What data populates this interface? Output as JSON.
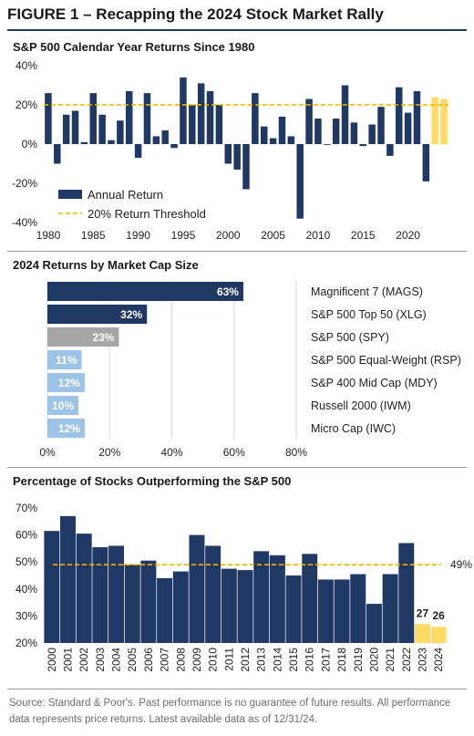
{
  "figure_title": "FIGURE 1 – Recapping the 2024 Stock Market Rally",
  "source_note": "Source: Standard & Poor's. Past performance is no guarantee of future results. All performance data represents price returns. Latest available data as of 12/31/24.",
  "colors": {
    "navy": "#1f3864",
    "gold": "#ffd966",
    "gray": "#a6a6a6",
    "light_blue": "#9dc3e6",
    "threshold": "#f0b400"
  },
  "chart_data": [
    {
      "type": "bar",
      "title": "S&P 500 Calendar Year Returns Since 1980",
      "x": [
        1980,
        1981,
        1982,
        1983,
        1984,
        1985,
        1986,
        1987,
        1988,
        1989,
        1990,
        1991,
        1992,
        1993,
        1994,
        1995,
        1996,
        1997,
        1998,
        1999,
        2000,
        2001,
        2002,
        2003,
        2004,
        2005,
        2006,
        2007,
        2008,
        2009,
        2010,
        2011,
        2012,
        2013,
        2014,
        2015,
        2016,
        2017,
        2018,
        2019,
        2020,
        2021,
        2022,
        2023,
        2024
      ],
      "series": [
        {
          "name": "Annual Return",
          "values": [
            26,
            -10,
            15,
            17,
            1,
            26,
            15,
            2,
            12,
            27,
            -7,
            26,
            4,
            7,
            -2,
            34,
            20,
            31,
            27,
            20,
            -10,
            -13,
            -23,
            26,
            9,
            3,
            14,
            4,
            -38,
            23,
            13,
            0,
            13,
            30,
            11,
            -1,
            10,
            19,
            -6,
            29,
            16,
            27,
            -19,
            24,
            23
          ]
        }
      ],
      "highlight_years": [
        2023,
        2024
      ],
      "reference_line": {
        "name": "20% Return Threshold",
        "value": 20
      },
      "ylim": [
        -40,
        40
      ],
      "yticks": [
        "40%",
        "20%",
        "0%",
        "-20%",
        "-40%"
      ],
      "xticks": [
        "1980",
        "1985",
        "1990",
        "1995",
        "2000",
        "2005",
        "2010",
        "2015",
        "2020"
      ],
      "legend": [
        "Annual Return",
        "20% Return Threshold"
      ],
      "legend_position": "bottom-left"
    },
    {
      "type": "bar",
      "orientation": "horizontal",
      "title": "2024 Returns by Market Cap Size",
      "categories": [
        "Magnificent 7 (MAGS)",
        "S&P 500 Top 50 (XLG)",
        "S&P 500 (SPY)",
        "S&P 500 Equal-Weight (RSP)",
        "S&P 400 Mid Cap (MDY)",
        "Russell 2000 (IWM)",
        "Micro Cap (IWC)"
      ],
      "values": [
        63,
        32,
        23,
        11,
        12,
        10,
        12
      ],
      "labels": [
        "63%",
        "32%",
        "23%",
        "11%",
        "12%",
        "10%",
        "12%"
      ],
      "xlim": [
        0,
        80
      ],
      "xticks": [
        "0%",
        "20%",
        "40%",
        "60%",
        "80%"
      ]
    },
    {
      "type": "bar",
      "title": "Percentage of Stocks Outperforming the S&P 500",
      "categories": [
        "2000",
        "2001",
        "2002",
        "2003",
        "2004",
        "2005",
        "2006",
        "2007",
        "2008",
        "2009",
        "2010",
        "2011",
        "2012",
        "2013",
        "2014",
        "2015",
        "2016",
        "2017",
        "2018",
        "2019",
        "2020",
        "2021",
        "2022",
        "2023",
        "2024"
      ],
      "values": [
        61.5,
        67,
        60.5,
        55.5,
        56,
        49,
        50.5,
        44,
        46.5,
        60,
        56,
        47.5,
        47,
        54,
        52.5,
        45,
        53,
        43.5,
        43.5,
        45.5,
        34.5,
        45.5,
        57,
        27,
        26
      ],
      "highlight_labels": {
        "2023": "27",
        "2024": "26"
      },
      "reference_line": {
        "value": 49,
        "label": "49%"
      },
      "ylim": [
        20,
        70
      ],
      "yticks": [
        "70%",
        "60%",
        "50%",
        "40%",
        "30%",
        "20%"
      ]
    }
  ]
}
